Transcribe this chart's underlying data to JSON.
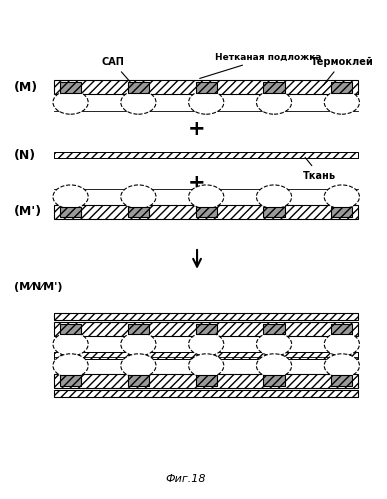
{
  "bg_color": "#ffffff",
  "label_M": "(M)",
  "label_N": "(N)",
  "label_Mp": "(M')",
  "label_MNMp": "(M⁄N⁄M')",
  "label_nonwoven": "Нетканая подложка",
  "label_SAP": "САП",
  "label_hotmelt": "Термоклей",
  "label_fabric": "Ткань",
  "label_fig": "Фиг.18"
}
